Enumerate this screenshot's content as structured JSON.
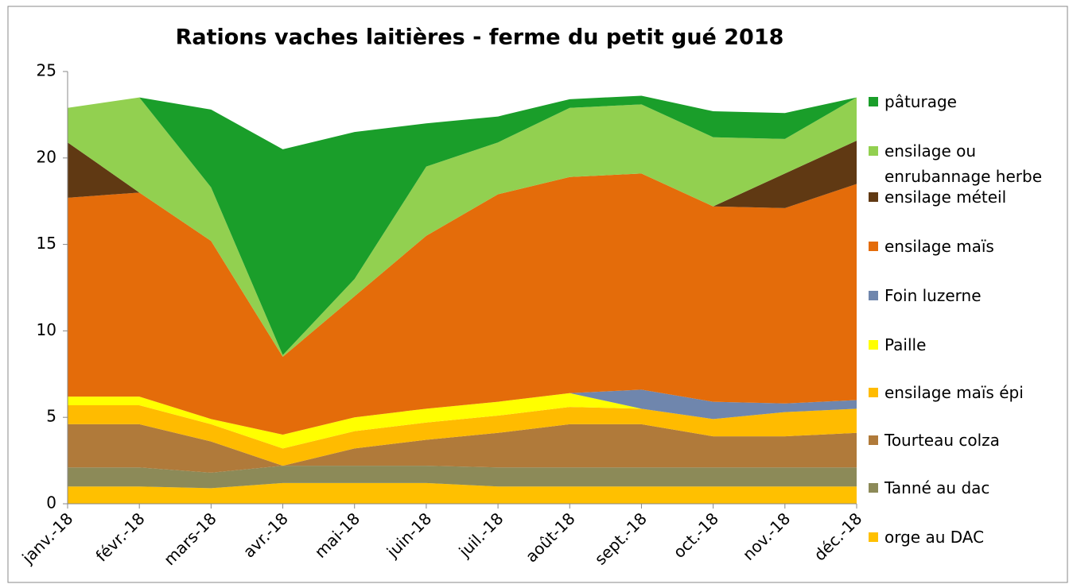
{
  "chart_data": {
    "type": "stacked_area",
    "title": "Rations vaches laitières - ferme du petit gué 2018",
    "categories": [
      "janv.-18",
      "févr.-18",
      "mars-18",
      "avr.-18",
      "mai-18",
      "juin-18",
      "juil.-18",
      "août-18",
      "sept.-18",
      "oct.-18",
      "nov.-18",
      "déc.-18"
    ],
    "series": [
      {
        "name": "orge au DAC",
        "color": "#ffc000",
        "values": [
          1.0,
          1.0,
          0.9,
          1.2,
          1.2,
          1.2,
          1.0,
          1.0,
          1.0,
          1.0,
          1.0,
          1.0
        ]
      },
      {
        "name": "Tanné au dac",
        "color": "#8c8a58",
        "values": [
          1.1,
          1.1,
          0.9,
          1.0,
          1.0,
          1.0,
          1.1,
          1.1,
          1.1,
          1.1,
          1.1,
          1.1
        ]
      },
      {
        "name": "Tourteau colza",
        "color": "#b07a3a",
        "values": [
          2.5,
          2.5,
          1.8,
          0,
          1.0,
          1.5,
          2.0,
          2.5,
          2.5,
          1.8,
          1.8,
          2.0
        ]
      },
      {
        "name": "ensilage maïs épi",
        "color": "#ffbb00",
        "values": [
          1.1,
          1.1,
          1.0,
          1.0,
          1.0,
          1.0,
          1.0,
          1.0,
          0.9,
          1.0,
          1.4,
          1.4
        ]
      },
      {
        "name": "Paille",
        "color": "#ffff00",
        "values": [
          0.5,
          0.5,
          0.3,
          0.8,
          0.8,
          0.8,
          0.8,
          0.8,
          0,
          0,
          0,
          0
        ]
      },
      {
        "name": "Foin luzerne",
        "color": "#6f86ad",
        "values": [
          0,
          0,
          0,
          0,
          0,
          0,
          0,
          0,
          1.1,
          1.0,
          0.5,
          0.5
        ]
      },
      {
        "name": "ensilage maïs",
        "color": "#e46c0a",
        "values": [
          11.5,
          11.8,
          10.3,
          4.5,
          7.0,
          10.0,
          12.0,
          12.5,
          12.5,
          11.3,
          11.3,
          12.5
        ]
      },
      {
        "name": "ensilage méteil",
        "color": "#603913",
        "values": [
          3.2,
          0,
          0,
          0,
          0,
          0,
          0,
          0,
          0,
          0,
          2.0,
          2.5
        ]
      },
      {
        "name": "ensilage ou enrubannage herbe",
        "color": "#92d050",
        "values": [
          2.0,
          5.5,
          3.1,
          0.1,
          1.0,
          4.0,
          3.0,
          4.0,
          4.0,
          4.0,
          2.0,
          2.5
        ]
      },
      {
        "name": "pâturage",
        "color": "#1a9e2a",
        "values": [
          0,
          0,
          4.5,
          11.9,
          8.5,
          2.5,
          1.5,
          0.5,
          0.5,
          1.5,
          1.5,
          0
        ]
      }
    ],
    "ylim": [
      0,
      25
    ],
    "yticks": [
      0,
      5,
      10,
      15,
      20,
      25
    ],
    "grid": false,
    "legend": "right"
  }
}
